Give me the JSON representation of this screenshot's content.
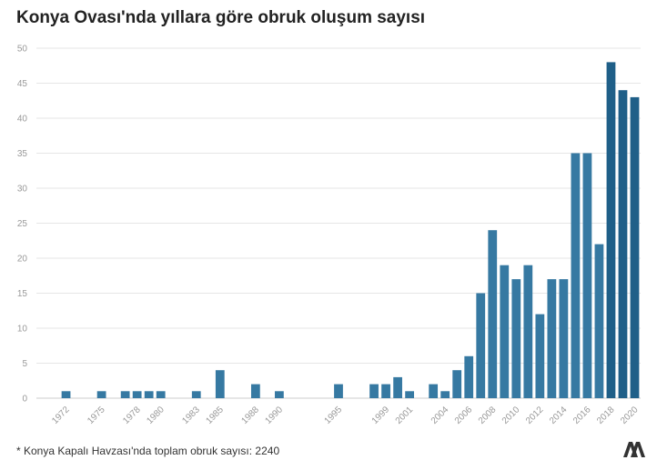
{
  "title": "Konya Ovası'nda yıllara göre obruk oluşum sayısı",
  "footnote": "* Konya Kapalı Havzası'nda toplam obruk sayısı: 2240",
  "logo_icon": "aa-agency-logo-icon",
  "colors": {
    "bar": "#3679a2",
    "bar_dark": "#1f5f88",
    "grid": "#e6e6e6",
    "tick": "#999999"
  },
  "chart_data": {
    "type": "bar",
    "title": "Konya Ovası'nda yıllara göre obruk oluşum sayısı",
    "xlabel": "",
    "ylabel": "",
    "ylim": [
      0,
      50
    ],
    "yticks": [
      0,
      5,
      10,
      15,
      20,
      25,
      30,
      35,
      40,
      45,
      50
    ],
    "grid": true,
    "xlim": [
      1969.5,
      2020.5
    ],
    "x_tick_labels": [
      "1972",
      "1975",
      "1978",
      "1980",
      "1983",
      "1985",
      "1988",
      "1990",
      "1995",
      "1999",
      "2001",
      "2004",
      "2006",
      "2008",
      "2010",
      "2012",
      "2014",
      "2016",
      "2018",
      "2020"
    ],
    "categories": [
      "1972",
      "1975",
      "1977",
      "1978",
      "1979",
      "1980",
      "1983",
      "1985",
      "1988",
      "1990",
      "1995",
      "1998",
      "1999",
      "2000",
      "2001",
      "2003",
      "2004",
      "2005",
      "2006",
      "2007",
      "2008",
      "2009",
      "2010",
      "2011",
      "2012",
      "2013",
      "2014",
      "2015",
      "2016",
      "2017",
      "2018",
      "2019",
      "2020"
    ],
    "values": [
      1,
      1,
      1,
      1,
      1,
      1,
      1,
      4,
      2,
      1,
      2,
      2,
      2,
      3,
      1,
      2,
      1,
      4,
      6,
      15,
      24,
      19,
      17,
      19,
      12,
      17,
      17,
      35,
      35,
      22,
      48,
      44,
      43
    ]
  }
}
